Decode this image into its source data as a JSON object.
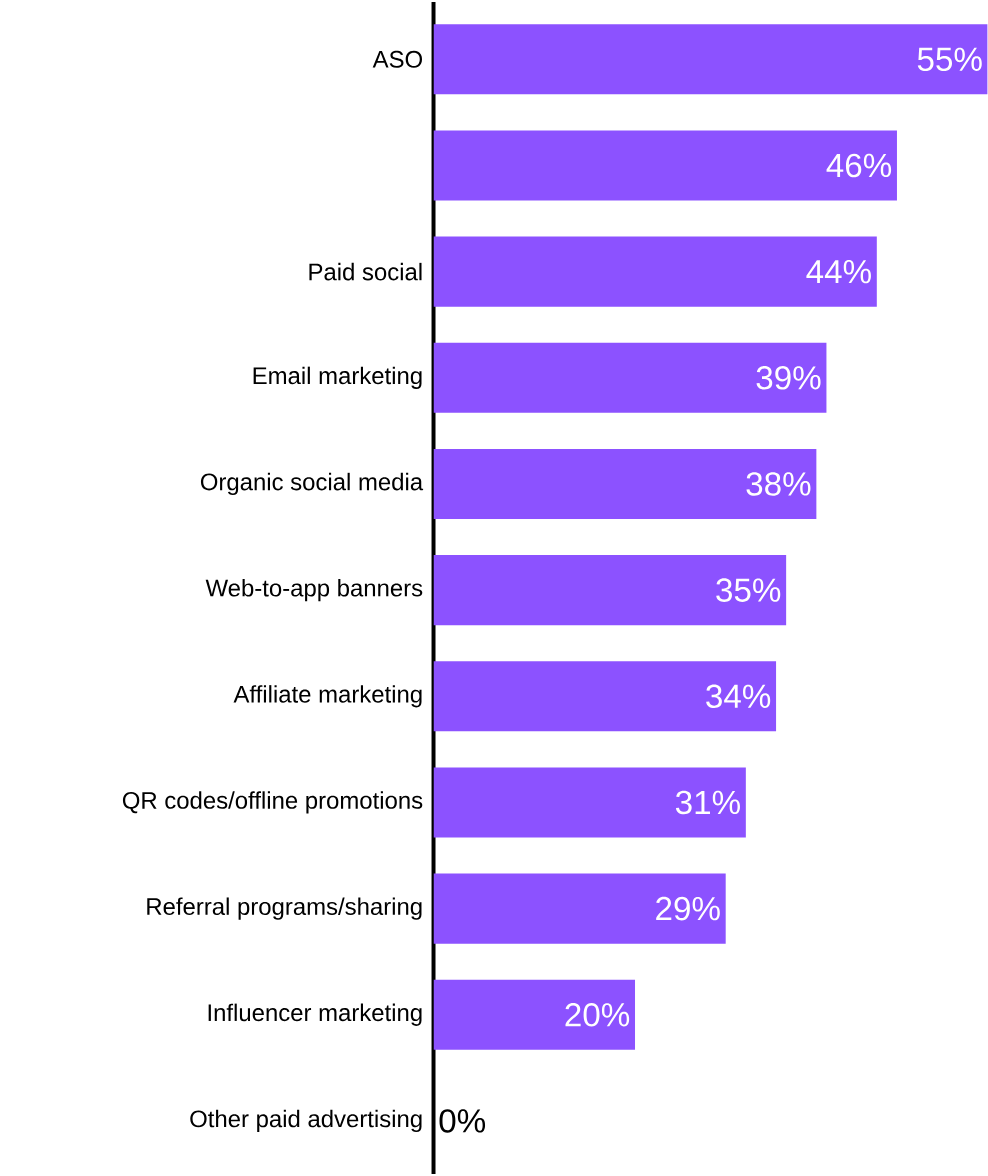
{
  "chart_data": {
    "type": "bar",
    "orientation": "horizontal",
    "categories": [
      "ASO",
      null,
      "Paid social",
      "Email marketing",
      "Organic social media",
      "Web-to-app banners",
      "Affiliate marketing",
      "QR codes/offline promotions",
      "Referral programs/sharing",
      "Influencer marketing",
      "Other paid advertising"
    ],
    "values": [
      55,
      46,
      44,
      39,
      38,
      35,
      34,
      31,
      29,
      20,
      0
    ],
    "value_labels": [
      "55%",
      "46%",
      "44%",
      "39%",
      "38%",
      "35%",
      "34%",
      "31%",
      "29%",
      "20%",
      "0%"
    ],
    "color": "#8c52ff"
  }
}
